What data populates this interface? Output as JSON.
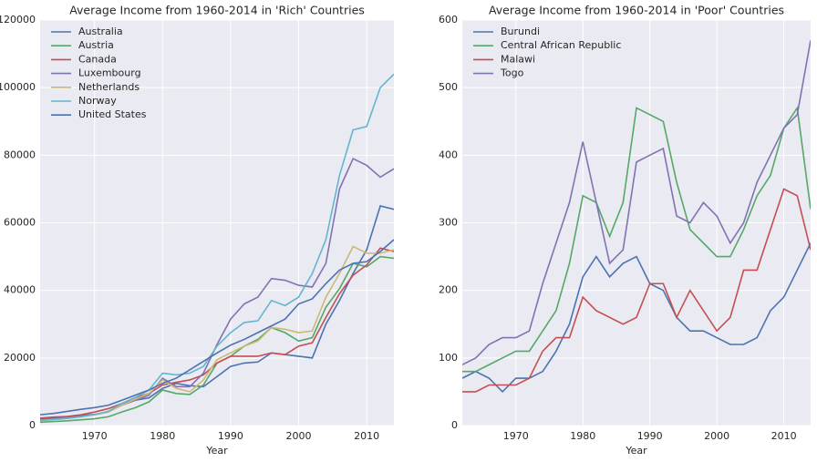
{
  "chart_data": [
    {
      "type": "line",
      "title": "Average Income from 1960-2014 in 'Rich' Countries",
      "xlabel": "Year",
      "x": [
        1962,
        1964,
        1966,
        1968,
        1970,
        1972,
        1974,
        1976,
        1978,
        1980,
        1982,
        1984,
        1986,
        1988,
        1990,
        1992,
        1994,
        1996,
        1998,
        2000,
        2002,
        2004,
        2006,
        2008,
        2010,
        2012,
        2014
      ],
      "xlim": [
        1962,
        2014
      ],
      "xticks": [
        1970,
        1980,
        1990,
        2000,
        2010
      ],
      "ylim": [
        0,
        120000
      ],
      "yticks": [
        0,
        20000,
        40000,
        60000,
        80000,
        100000,
        120000
      ],
      "grid": true,
      "legend": "upper-left",
      "series": [
        {
          "name": "Australia",
          "color": "#4c72b0",
          "values": [
            2000,
            2300,
            2600,
            3000,
            3300,
            4000,
            6500,
            7500,
            8200,
            11000,
            12500,
            11800,
            11500,
            14500,
            17500,
            18500,
            18800,
            21500,
            21000,
            20500,
            20000,
            30000,
            37000,
            45000,
            52000,
            65000,
            64000
          ]
        },
        {
          "name": "Austria",
          "color": "#55a868",
          "values": [
            1000,
            1200,
            1400,
            1700,
            2000,
            2600,
            4000,
            5300,
            7000,
            10500,
            9500,
            9200,
            12000,
            18500,
            20500,
            23500,
            25500,
            29000,
            27500,
            25000,
            26000,
            35000,
            40500,
            48000,
            47000,
            50000,
            49500
          ]
        },
        {
          "name": "Canada",
          "color": "#c44e52",
          "values": [
            2200,
            2500,
            2700,
            3200,
            4000,
            5000,
            6500,
            8300,
            9500,
            12000,
            12800,
            13500,
            15000,
            18500,
            20500,
            20500,
            20500,
            21500,
            21000,
            23500,
            24500,
            32000,
            39000,
            44500,
            47500,
            52500,
            51500
          ]
        },
        {
          "name": "Luxembourg",
          "color": "#8172b2",
          "values": [
            1600,
            1900,
            2200,
            2700,
            3200,
            4000,
            6000,
            7500,
            9000,
            14000,
            11500,
            11500,
            15500,
            24000,
            31500,
            36000,
            38000,
            43500,
            43000,
            41500,
            41000,
            48000,
            70000,
            79000,
            77000,
            73500,
            76000
          ]
        },
        {
          "name": "Netherlands",
          "color": "#ccb974",
          "values": [
            1500,
            1800,
            2100,
            2600,
            3200,
            4000,
            6000,
            7800,
            9500,
            13500,
            11000,
            10000,
            13500,
            19500,
            21500,
            23500,
            25000,
            29000,
            28500,
            27500,
            28000,
            38000,
            45000,
            53000,
            51000,
            51000,
            52000
          ]
        },
        {
          "name": "Norway",
          "color": "#64b5cd",
          "values": [
            1500,
            1800,
            2100,
            2600,
            3200,
            4200,
            6500,
            8300,
            10500,
            15500,
            15000,
            15500,
            17500,
            23500,
            27500,
            30500,
            31000,
            37000,
            35500,
            38000,
            45000,
            55000,
            74000,
            87500,
            88500,
            100000,
            104000
          ]
        },
        {
          "name": "United States",
          "color": "#4c72b0",
          "values": [
            3200,
            3600,
            4200,
            4800,
            5300,
            6000,
            7500,
            9000,
            10500,
            12500,
            14000,
            16500,
            19000,
            21500,
            23800,
            25500,
            27500,
            29500,
            31500,
            36000,
            37500,
            42000,
            46000,
            48000,
            48500,
            51500,
            55000
          ]
        }
      ]
    },
    {
      "type": "line",
      "title": "Average Income from 1960-2014 in 'Poor' Countries",
      "xlabel": "Year",
      "x": [
        1962,
        1964,
        1966,
        1968,
        1970,
        1972,
        1974,
        1976,
        1978,
        1980,
        1982,
        1984,
        1986,
        1988,
        1990,
        1992,
        1994,
        1996,
        1998,
        2000,
        2002,
        2004,
        2006,
        2008,
        2010,
        2012,
        2014
      ],
      "xlim": [
        1962,
        2014
      ],
      "xticks": [
        1970,
        1980,
        1990,
        2000,
        2010
      ],
      "ylim": [
        0,
        600
      ],
      "yticks": [
        0,
        100,
        200,
        300,
        400,
        500,
        600
      ],
      "grid": true,
      "legend": "upper-left",
      "series": [
        {
          "name": "Burundi",
          "color": "#4c72b0",
          "values": [
            70,
            80,
            70,
            50,
            70,
            70,
            80,
            110,
            150,
            220,
            250,
            220,
            240,
            250,
            210,
            200,
            160,
            140,
            140,
            130,
            120,
            120,
            130,
            170,
            190,
            230,
            270
          ]
        },
        {
          "name": "Central African Republic",
          "color": "#55a868",
          "values": [
            80,
            80,
            90,
            100,
            110,
            110,
            140,
            170,
            240,
            340,
            330,
            280,
            330,
            470,
            460,
            450,
            360,
            290,
            270,
            250,
            250,
            290,
            340,
            370,
            440,
            470,
            320
          ]
        },
        {
          "name": "Malawi",
          "color": "#c44e52",
          "values": [
            50,
            50,
            60,
            60,
            60,
            70,
            110,
            130,
            130,
            190,
            170,
            160,
            150,
            160,
            210,
            210,
            160,
            200,
            170,
            140,
            160,
            230,
            230,
            290,
            350,
            340,
            260
          ]
        },
        {
          "name": "Togo",
          "color": "#8172b2",
          "values": [
            90,
            100,
            120,
            130,
            130,
            140,
            210,
            270,
            330,
            420,
            330,
            240,
            260,
            390,
            400,
            410,
            310,
            300,
            330,
            310,
            270,
            300,
            360,
            400,
            440,
            460,
            570
          ]
        }
      ]
    }
  ]
}
